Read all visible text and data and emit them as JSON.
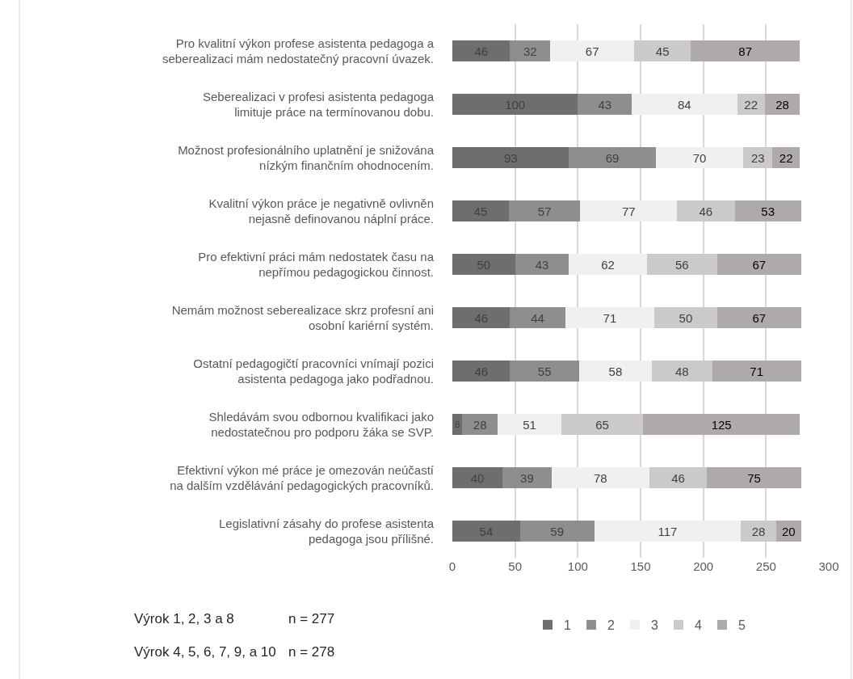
{
  "chart_data": {
    "type": "bar",
    "orientation": "horizontal",
    "stacked": true,
    "data_labels": true,
    "grid": "x",
    "legend": "bottom",
    "categories": [
      "Pro kvalitní výkon profese asistenta pedagoga a seberealizaci mám nedostatečný pracovní úvazek.",
      "Seberealizaci v profesi asistenta pedagoga limituje práce na termínovanou dobu.",
      "Možnost profesionálního uplatnění je snižována nízkým finančním ohodnocením.",
      "Kvalitní výkon práce je negativně ovlivněn nejasně definovanou náplní práce.",
      "Pro efektivní práci mám nedostatek času na nepřímou pedagogickou činnost.",
      "Nemám možnost seberealizace skrz profesní ani osobní kariérní systém.",
      "Ostatní pedagogičtí pracovníci vnímají pozici asistenta pedagoga jako podřadnou.",
      "Shledávám svou odbornou kvalifikaci jako nedostatečnou pro podporu žáka se SVP.",
      "Efektivní výkon mé práce je omezován neúčastí na dalším vzdělávání pedagogických pracovníků.",
      "Legislativní zásahy do profese asistenta pedagoga jsou přílišné."
    ],
    "series": [
      {
        "name": "1",
        "color": "#6e6e6e",
        "values": [
          46,
          100,
          93,
          45,
          50,
          46,
          46,
          8,
          40,
          54
        ]
      },
      {
        "name": "2",
        "color": "#8e8e8e",
        "values": [
          32,
          43,
          69,
          57,
          43,
          44,
          55,
          28,
          39,
          59
        ]
      },
      {
        "name": "3",
        "color": "#f0f0f0",
        "values": [
          67,
          84,
          70,
          77,
          62,
          71,
          58,
          51,
          78,
          117
        ]
      },
      {
        "name": "4",
        "color": "#cbc9ca",
        "values": [
          45,
          22,
          23,
          46,
          56,
          50,
          48,
          65,
          46,
          28
        ]
      },
      {
        "name": "5",
        "color": "#aeaaaa",
        "values": [
          87,
          28,
          22,
          53,
          67,
          67,
          71,
          125,
          75,
          20
        ]
      }
    ],
    "xlim": [
      0,
      300
    ],
    "xticks": [
      0,
      50,
      100,
      150,
      200,
      250,
      300
    ],
    "annotations": [
      "Výrok 1, 2, 3 a 8",
      "n = 277",
      "Výrok 4, 5, 6, 7, 9, a 10",
      "n = 278"
    ]
  }
}
